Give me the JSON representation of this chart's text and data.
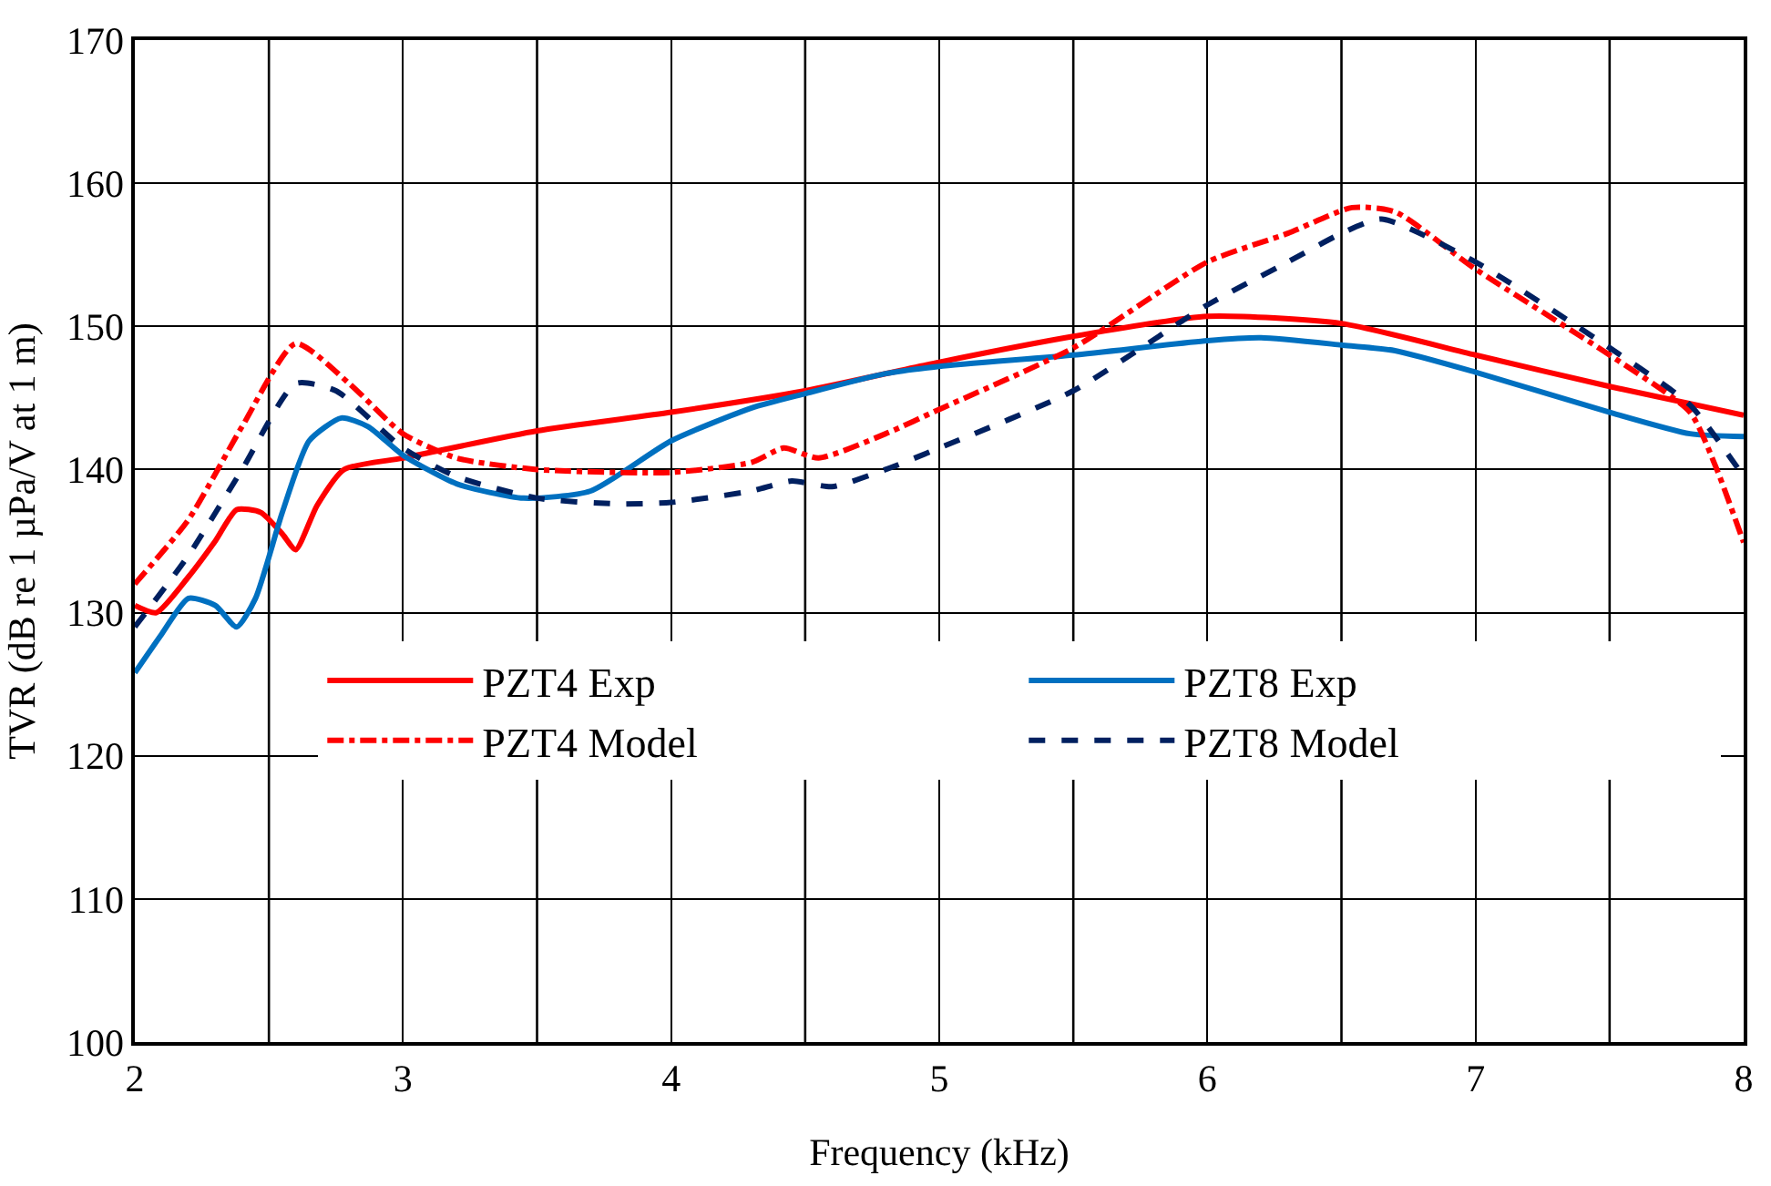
{
  "chart_data": {
    "type": "line",
    "xlabel": "Frequency (kHz)",
    "ylabel": "TVR (dB re 1 µPa/V at 1 m)",
    "xlim": [
      2,
      8
    ],
    "xticks": [
      2,
      3,
      4,
      5,
      6,
      7,
      8
    ],
    "ylim": [
      100,
      170
    ],
    "yticks": [
      100,
      110,
      120,
      130,
      140,
      150,
      160,
      170
    ],
    "grid": true,
    "legend": "bottom",
    "marker": "none",
    "series": [
      {
        "name": "PZT4 Exp",
        "color": "#ff0000",
        "line_style": "solid",
        "x": [
          2.0,
          2.08,
          2.2,
          2.3,
          2.38,
          2.47,
          2.55,
          2.6,
          2.68,
          2.78,
          3.0,
          3.5,
          4.0,
          4.5,
          5.0,
          5.5,
          6.0,
          6.5,
          7.0,
          7.5,
          8.0
        ],
        "values": [
          130.5,
          130,
          132.5,
          135,
          137.2,
          137,
          135.5,
          134.4,
          137.5,
          140,
          140.8,
          142.7,
          144,
          145.5,
          147.5,
          149.3,
          150.7,
          150.2,
          148,
          145.8,
          143.8
        ]
      },
      {
        "name": "PZT8 Exp",
        "color": "#0070c0",
        "line_style": "solid",
        "x": [
          2.0,
          2.1,
          2.2,
          2.3,
          2.38,
          2.45,
          2.55,
          2.65,
          2.77,
          2.87,
          3.0,
          3.2,
          3.45,
          3.7,
          4.0,
          4.3,
          4.5,
          4.8,
          5.0,
          5.5,
          6.0,
          6.2,
          6.5,
          6.7,
          7.0,
          7.5,
          7.8,
          8.0
        ],
        "values": [
          125.8,
          128.5,
          131,
          130.5,
          129,
          131,
          137,
          142,
          143.6,
          143,
          141,
          139,
          138,
          138.5,
          142,
          144.3,
          145.3,
          146.7,
          147.2,
          148,
          149,
          149.2,
          148.7,
          148.3,
          146.8,
          144,
          142.5,
          142.3
        ]
      },
      {
        "name": "PZT4 Model",
        "color": "#ff0000",
        "line_style": "dashdot",
        "x": [
          2.0,
          2.2,
          2.4,
          2.6,
          2.8,
          3.0,
          3.2,
          3.5,
          4.0,
          4.3,
          4.42,
          4.55,
          4.8,
          5.0,
          5.5,
          6.0,
          6.3,
          6.54,
          6.7,
          7.0,
          7.5,
          7.8,
          7.9,
          8.0
        ],
        "values": [
          132,
          136.5,
          143,
          148.8,
          146,
          142.5,
          140.8,
          140,
          139.8,
          140.5,
          141.5,
          140.8,
          142.5,
          144.2,
          148.5,
          154.5,
          156.5,
          158.3,
          158,
          154,
          148,
          144,
          140,
          134.9
        ]
      },
      {
        "name": "PZT8 Model",
        "color": "#002060",
        "line_style": "dashed",
        "x": [
          2.0,
          2.2,
          2.4,
          2.6,
          2.75,
          3.0,
          3.2,
          3.5,
          3.8,
          4.0,
          4.3,
          4.45,
          4.6,
          4.8,
          5.0,
          5.5,
          6.0,
          6.3,
          6.5,
          6.65,
          7.0,
          7.5,
          7.8,
          8.0
        ],
        "values": [
          129,
          134,
          140,
          146,
          145.5,
          141.5,
          139.5,
          138,
          137.6,
          137.7,
          138.5,
          139.2,
          138.8,
          140,
          141.5,
          145.5,
          151.5,
          154.5,
          156.5,
          157.5,
          154.5,
          148.5,
          144.5,
          139.5
        ]
      }
    ]
  }
}
